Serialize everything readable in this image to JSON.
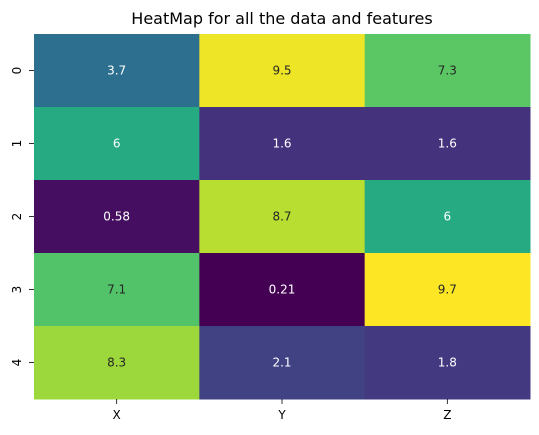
{
  "chart_data": {
    "type": "heatmap",
    "title": "HeatMap for all the data and features",
    "x_categories": [
      "X",
      "Y",
      "Z"
    ],
    "y_categories": [
      "0",
      "1",
      "2",
      "3",
      "4"
    ],
    "values": [
      [
        3.7,
        9.5,
        7.3
      ],
      [
        6,
        1.6,
        1.6
      ],
      [
        0.58,
        8.7,
        6
      ],
      [
        7.1,
        0.21,
        9.7
      ],
      [
        8.3,
        2.1,
        1.8
      ]
    ],
    "value_labels": [
      [
        "3.7",
        "9.5",
        "7.3"
      ],
      [
        "6",
        "1.6",
        "1.6"
      ],
      [
        "0.58",
        "8.7",
        "6"
      ],
      [
        "7.1",
        "0.21",
        "9.7"
      ],
      [
        "8.3",
        "2.1",
        "1.8"
      ]
    ],
    "colormap": "viridis",
    "color_range": [
      0.21,
      9.7
    ],
    "colorbar": false,
    "annotations": true
  }
}
